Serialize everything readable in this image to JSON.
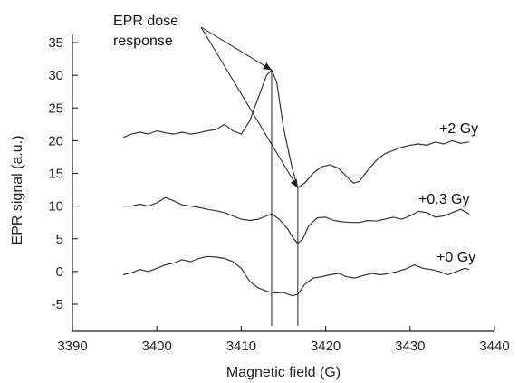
{
  "chart_data": {
    "type": "line",
    "title": "",
    "xlabel": "Magnetic field (G)",
    "ylabel": "EPR signal (a.u.)",
    "xlim": [
      3390,
      3440
    ],
    "ylim": [
      -10,
      35
    ],
    "x_ticks": [
      3390,
      3400,
      3410,
      3420,
      3430,
      3440
    ],
    "y_ticks": [
      35,
      30,
      25,
      20,
      15,
      10,
      5,
      0,
      -5
    ],
    "grid": false,
    "annotation": {
      "text_line1": "EPR dose",
      "text_line2": "response",
      "markers": [
        {
          "x": 3413.6,
          "y": 30.8
        },
        {
          "x": 3416.7,
          "y": 12.8
        }
      ]
    },
    "guide_lines_x": [
      3413.6,
      3416.7
    ],
    "series": [
      {
        "name": "+2 Gy",
        "x": [
          3396,
          3397,
          3398,
          3399,
          3400,
          3401,
          3402,
          3403,
          3404,
          3405,
          3406,
          3407,
          3408,
          3409,
          3410,
          3411,
          3412,
          3413,
          3413.6,
          3414.2,
          3415,
          3416,
          3416.7,
          3417.5,
          3418.5,
          3419.5,
          3420.5,
          3421.5,
          3422.5,
          3423.3,
          3424,
          3425,
          3426,
          3427,
          3428,
          3429,
          3430,
          3431,
          3432,
          3433,
          3434,
          3435,
          3436,
          3437
        ],
        "values": [
          20.5,
          21.0,
          21.3,
          21.0,
          21.5,
          21.2,
          21.0,
          21.3,
          21.0,
          21.2,
          21.5,
          21.7,
          22.5,
          21.5,
          21.0,
          23.0,
          26.5,
          30.0,
          30.8,
          29.0,
          22.0,
          16.0,
          12.8,
          13.5,
          15.0,
          16.0,
          16.3,
          15.8,
          14.5,
          13.5,
          13.8,
          15.5,
          17.0,
          18.0,
          18.5,
          19.0,
          19.3,
          19.5,
          19.3,
          19.8,
          19.5,
          20.0,
          19.6,
          19.8
        ]
      },
      {
        "name": "+0.3 Gy",
        "x": [
          3396,
          3397,
          3398,
          3399,
          3400,
          3401,
          3402,
          3403,
          3404,
          3405,
          3406,
          3407,
          3408,
          3409,
          3410,
          3411,
          3412,
          3413,
          3413.6,
          3414.5,
          3415.5,
          3416.2,
          3416.7,
          3417.3,
          3418,
          3419,
          3420,
          3421,
          3422,
          3423,
          3424,
          3425,
          3426,
          3427,
          3428,
          3429,
          3430,
          3431,
          3432,
          3433,
          3434,
          3435,
          3436,
          3437
        ],
        "values": [
          10.0,
          10.0,
          10.3,
          10.0,
          10.5,
          11.3,
          10.8,
          10.2,
          10.0,
          9.8,
          9.5,
          9.3,
          9.0,
          8.5,
          8.0,
          7.8,
          8.0,
          8.5,
          8.8,
          8.0,
          6.5,
          5.0,
          4.3,
          5.0,
          7.0,
          8.2,
          8.3,
          7.8,
          7.6,
          7.5,
          7.5,
          7.8,
          7.7,
          8.0,
          8.3,
          8.0,
          8.5,
          9.2,
          9.0,
          8.3,
          8.5,
          9.0,
          9.5,
          8.8
        ]
      },
      {
        "name": "+0 Gy",
        "x": [
          3396,
          3397,
          3398,
          3399,
          3400,
          3401,
          3402,
          3403,
          3404,
          3405,
          3406,
          3407,
          3408,
          3409,
          3410,
          3411,
          3412,
          3413,
          3414,
          3415,
          3416,
          3416.7,
          3417.5,
          3418.5,
          3419.5,
          3420.5,
          3421.5,
          3422.5,
          3423.5,
          3424.5,
          3425.5,
          3426.5,
          3427.5,
          3428.5,
          3429.5,
          3430.5,
          3431.5,
          3432.5,
          3433.5,
          3434.5,
          3435.5,
          3436.5,
          3437
        ],
        "values": [
          -0.5,
          -0.2,
          0.3,
          0.0,
          0.5,
          1.0,
          1.3,
          1.8,
          1.5,
          2.0,
          2.3,
          2.2,
          2.0,
          1.5,
          0.5,
          -1.5,
          -2.5,
          -3.0,
          -3.3,
          -3.2,
          -3.7,
          -3.5,
          -2.0,
          -1.0,
          -0.8,
          -0.5,
          -0.3,
          -0.8,
          -1.0,
          -0.6,
          -0.3,
          -0.5,
          -0.3,
          0.0,
          0.4,
          1.0,
          0.5,
          0.3,
          0.0,
          -0.5,
          0.0,
          0.5,
          0.3
        ]
      }
    ]
  }
}
